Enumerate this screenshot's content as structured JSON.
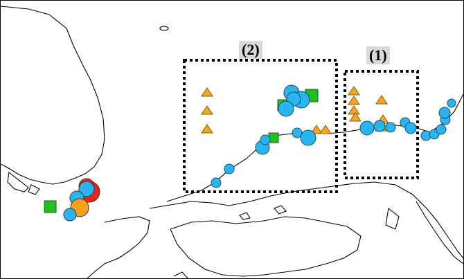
{
  "map": {
    "colors": {
      "land_outline": "#000000",
      "circle_blue": "#29b6f0",
      "circle_orange": "#f7a21b",
      "circle_red": "#e8261c",
      "square_green": "#1ec01e",
      "triangle_orange": "#f5a623",
      "label_background": "#d9d9d9"
    },
    "regions": [
      {
        "id": "region-1",
        "label": "(1)"
      },
      {
        "id": "region-2",
        "label": "(2)"
      }
    ]
  }
}
